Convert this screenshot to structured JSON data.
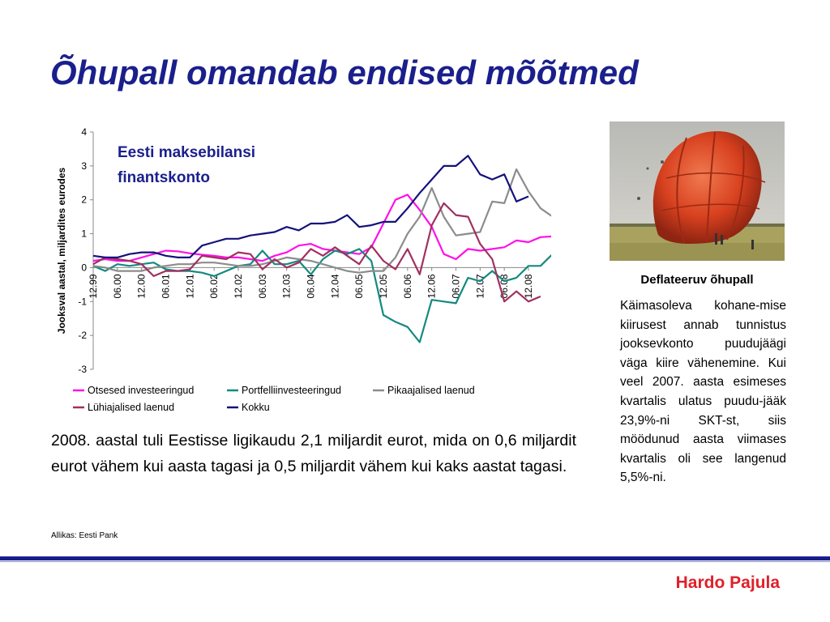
{
  "slide": {
    "title": "Õhupall omandab endised mõõtmed",
    "body_text": "2008. aastal tuli Eestisse ligikaudu 2,1 miljardit eurot, mida on 0,6 miljardit eurot vähem kui aasta tagasi ja 0,5 miljardit vähem kui kaks aastat tagasi.",
    "source": "Allikas: Eesti Pank",
    "author": "Hardo Pajula",
    "photo_caption_title": "Deflateeruv õhupall",
    "photo_caption_text": "Käimasoleva kohane-mise kiirusest annab tunnistus jooksevkonto puudujäägi väga kiire vähenemine. Kui veel 2007. aasta esimeses kvartalis ulatus puudu-jääk 23,9%-ni SKT-st, siis möödunud aasta viimases kvartalis oli see langenud 5,5%-ni.",
    "accent_color": "#1a1f8c",
    "author_color": "#e0202a"
  },
  "chart_data": {
    "type": "line",
    "title_line1": "Eesti maksebilansi",
    "title_line2": "finantskonto",
    "ylabel": "Jooksval aastal, miljardites eurodes",
    "ylim": [
      -3,
      4
    ],
    "yticks": [
      "4",
      "3",
      "2",
      "1",
      "0",
      "-1",
      "-2",
      "-3"
    ],
    "tick_labels": [
      "12.99",
      "06.00",
      "12.00",
      "06.01",
      "12.01",
      "06.02",
      "12.02",
      "06.03",
      "12.03",
      "06.04",
      "12.04",
      "06.05",
      "12.05",
      "06.06",
      "12.06",
      "06.07",
      "12.07",
      "06.08",
      "12.08"
    ],
    "legend_position": "bottom",
    "series": [
      {
        "name": "Otsesed investeeringud",
        "color": "#ff10e8",
        "values": [
          0.2,
          0.25,
          0.2,
          0.2,
          0.3,
          0.4,
          0.5,
          0.48,
          0.42,
          0.38,
          0.35,
          0.3,
          0.3,
          0.25,
          0.2,
          0.35,
          0.45,
          0.65,
          0.7,
          0.55,
          0.5,
          0.45,
          0.4,
          0.6,
          1.3,
          2.0,
          2.15,
          1.7,
          1.2,
          0.4,
          0.25,
          0.55,
          0.5,
          0.55,
          0.6,
          0.8,
          0.75,
          0.9,
          0.92,
          0.7
        ]
      },
      {
        "name": "Portfelliinvesteeringud",
        "color": "#138a80",
        "values": [
          0.05,
          -0.1,
          0.1,
          0.05,
          0.1,
          0.15,
          -0.05,
          -0.1,
          -0.1,
          -0.15,
          -0.25,
          -0.1,
          0.05,
          0.1,
          0.5,
          0.1,
          0.1,
          0.2,
          -0.2,
          0.25,
          0.5,
          0.4,
          0.55,
          0.2,
          -1.4,
          -1.6,
          -1.75,
          -2.2,
          -0.95,
          -1.0,
          -1.05,
          -0.3,
          -0.4,
          -0.1,
          -0.4,
          -0.3,
          0.05,
          0.05,
          0.4
        ]
      },
      {
        "name": "Pikaajalised laenud",
        "color": "#8c8c8c",
        "values": [
          0.05,
          0.0,
          -0.1,
          -0.1,
          -0.1,
          0.0,
          0.05,
          0.1,
          0.1,
          0.15,
          0.15,
          0.1,
          0.05,
          0.05,
          0.1,
          0.2,
          0.3,
          0.25,
          0.2,
          0.1,
          0.0,
          -0.1,
          -0.15,
          -0.1,
          -0.1,
          0.3,
          1.0,
          1.5,
          2.35,
          1.5,
          0.95,
          1.0,
          1.05,
          1.95,
          1.9,
          2.9,
          2.25,
          1.75,
          1.5
        ]
      },
      {
        "name": "Lühiajalised laenud",
        "color": "#a03060",
        "values": [
          0.1,
          0.3,
          0.25,
          0.2,
          0.1,
          -0.25,
          -0.1,
          -0.1,
          -0.05,
          0.35,
          0.3,
          0.25,
          0.45,
          0.4,
          -0.05,
          0.25,
          0.0,
          0.15,
          0.55,
          0.35,
          0.6,
          0.35,
          0.1,
          0.65,
          0.2,
          -0.05,
          0.55,
          -0.2,
          1.25,
          1.9,
          1.55,
          1.5,
          0.7,
          0.25,
          -1.0,
          -0.7,
          -1.0,
          -0.85
        ]
      },
      {
        "name": "Kokku",
        "color": "#14127a",
        "values": [
          0.35,
          0.3,
          0.3,
          0.4,
          0.45,
          0.45,
          0.35,
          0.3,
          0.3,
          0.65,
          0.75,
          0.85,
          0.85,
          0.95,
          1.0,
          1.05,
          1.2,
          1.1,
          1.3,
          1.3,
          1.35,
          1.55,
          1.2,
          1.25,
          1.35,
          1.35,
          1.75,
          2.2,
          2.6,
          3.0,
          3.0,
          3.3,
          2.75,
          2.6,
          2.75,
          1.95,
          2.1
        ]
      }
    ]
  }
}
